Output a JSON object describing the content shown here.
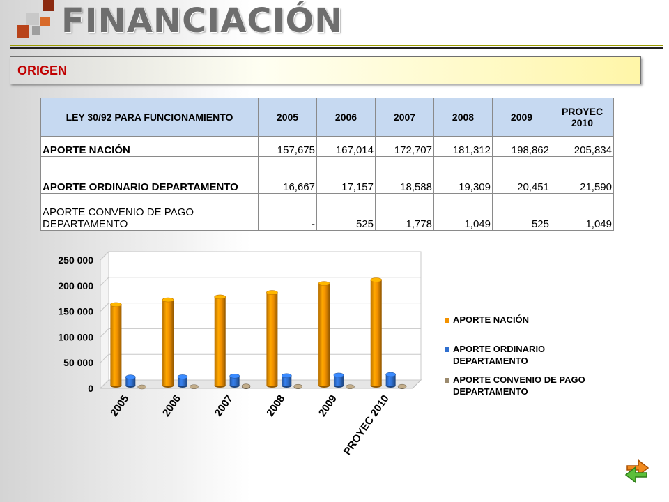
{
  "header": {
    "title": "FINANCIACIÓN"
  },
  "section": {
    "title": "ORIGEN"
  },
  "colors": {
    "accent_red": "#c00000",
    "series_nacion": "#f39200",
    "series_ordinario": "#2f6fcf",
    "series_convenio": "#9b8a6e",
    "header_fill": "#c6d9f1"
  },
  "table": {
    "corner_header": "LEY 30/92 PARA FUNCIONAMIENTO",
    "columns": [
      "2005",
      "2006",
      "2007",
      "2008",
      "2009",
      "PROYEC 2010"
    ],
    "rows": [
      {
        "label": "APORTE NACIÓN",
        "values": [
          "157,675",
          "167,014",
          "172,707",
          "181,312",
          "198,862",
          "205,834"
        ]
      },
      {
        "label": "APORTE ORDINARIO DEPARTAMENTO",
        "values": [
          "16,667",
          "17,157",
          "18,588",
          "19,309",
          "20,451",
          "21,590"
        ]
      },
      {
        "label": "APORTE CONVENIO DE PAGO DEPARTAMENTO",
        "values": [
          "-",
          "525",
          "1,778",
          "1,049",
          "525",
          "1,049"
        ]
      }
    ]
  },
  "chart_data": {
    "type": "bar",
    "categories": [
      "2005",
      "2006",
      "2007",
      "2008",
      "2009",
      "PROYEC 2010"
    ],
    "series": [
      {
        "name": "APORTE NACIÓN",
        "values": [
          157675,
          167014,
          172707,
          181312,
          198862,
          205834
        ]
      },
      {
        "name": "APORTE ORDINARIO DEPARTAMENTO",
        "values": [
          16667,
          17157,
          18588,
          19309,
          20451,
          21590
        ]
      },
      {
        "name": "APORTE CONVENIO DE PAGO DEPARTAMENTO",
        "values": [
          0,
          525,
          1778,
          1049,
          525,
          1049
        ]
      }
    ],
    "title": "",
    "xlabel": "",
    "ylabel": "",
    "ylim": [
      0,
      250000
    ],
    "yticks": [
      0,
      50000,
      100000,
      150000,
      200000,
      250000
    ],
    "ytick_labels": [
      "0",
      "50 000",
      "100 000",
      "150 000",
      "200 000",
      "250 000"
    ],
    "legend_position": "right",
    "style": "3d-cylinder"
  },
  "nav": {
    "icon": "refresh-arrows-icon"
  }
}
